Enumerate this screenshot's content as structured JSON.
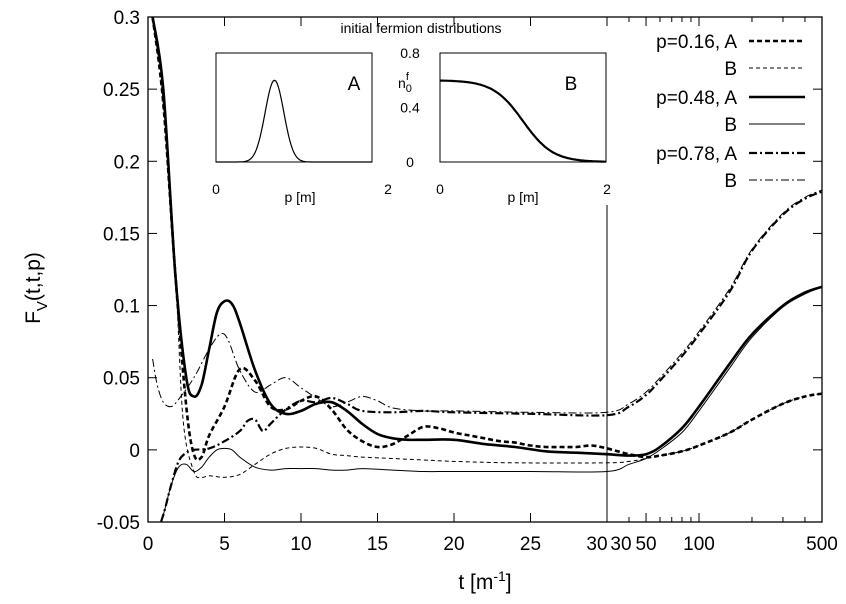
{
  "chart_data": {
    "type": "line",
    "xlabel": "t [m",
    "xlabel_sup": "-1",
    "xlabel_end": "]",
    "ylabel": "F",
    "ylabel_sub": "V",
    "ylabel_end": "(t,t,p)",
    "ylim": [
      -0.05,
      0.3
    ],
    "yticks": [
      "-0.05",
      "0",
      "0.05",
      "0.1",
      "0.15",
      "0.2",
      "0.25",
      "0.3"
    ],
    "ytick_values": [
      -0.05,
      0,
      0.05,
      0.1,
      0.15,
      0.2,
      0.25,
      0.3
    ],
    "x_axis_segments": [
      {
        "scale": "linear",
        "range": [
          0,
          30
        ]
      },
      {
        "scale": "log",
        "range": [
          30,
          500
        ]
      }
    ],
    "xticks": [
      "0",
      "5",
      "10",
      "15",
      "20",
      "25",
      "30",
      "30",
      "50",
      "100",
      "500"
    ],
    "grid": false,
    "legend_position": "top-right",
    "legend": [
      {
        "line1": "p=0.16, A",
        "line2": "B",
        "styleA": "A016",
        "styleB": "B016"
      },
      {
        "line1": "p=0.48, A",
        "line2": "B",
        "styleA": "A048",
        "styleB": "B048"
      },
      {
        "line1": "p=0.78, A",
        "line2": "B",
        "styleA": "A078",
        "styleB": "B078"
      }
    ],
    "series": [
      {
        "style": "A016",
        "p": 0.16,
        "distribution": "A",
        "points": [
          [
            0.3,
            0.3
          ],
          [
            1,
            0.24
          ],
          [
            1.8,
            0.12
          ],
          [
            2.5,
            0.03
          ],
          [
            3,
            -0.003
          ],
          [
            3.5,
            -0.005
          ],
          [
            4,
            0.01
          ],
          [
            5,
            0.03
          ],
          [
            6,
            0.056
          ],
          [
            7,
            0.048
          ],
          [
            8,
            0.03
          ],
          [
            9,
            0.028
          ],
          [
            10,
            0.034
          ],
          [
            11,
            0.037
          ],
          [
            12,
            0.028
          ],
          [
            13,
            0.014
          ],
          [
            14,
            0.006
          ],
          [
            15,
            0.002
          ],
          [
            16,
            0.004
          ],
          [
            17,
            0.01
          ],
          [
            18,
            0.016
          ],
          [
            19,
            0.015
          ],
          [
            20,
            0.012
          ],
          [
            21,
            0.01
          ],
          [
            22,
            0.008
          ],
          [
            23,
            0.006
          ],
          [
            24,
            0.005
          ],
          [
            25,
            0.003
          ],
          [
            26,
            0.002
          ],
          [
            27,
            0.002
          ],
          [
            28,
            0.002
          ],
          [
            29,
            0.003
          ],
          [
            30,
            0.001
          ],
          [
            40,
            -0.003
          ],
          [
            50,
            -0.005
          ],
          [
            60,
            -0.004
          ],
          [
            80,
            -0.001
          ],
          [
            100,
            0.003
          ],
          [
            150,
            0.012
          ],
          [
            200,
            0.021
          ],
          [
            300,
            0.032
          ],
          [
            400,
            0.037
          ],
          [
            500,
            0.039
          ]
        ]
      },
      {
        "style": "B016",
        "p": 0.16,
        "distribution": "B",
        "points": [
          [
            0.3,
            0.3
          ],
          [
            1,
            0.24
          ],
          [
            1.8,
            0.12
          ],
          [
            2.3,
            0.02
          ],
          [
            3,
            -0.015
          ],
          [
            3.5,
            -0.019
          ],
          [
            4,
            -0.018
          ],
          [
            5,
            -0.019
          ],
          [
            6,
            -0.017
          ],
          [
            7,
            -0.01
          ],
          [
            8,
            -0.003
          ],
          [
            9,
            0.001
          ],
          [
            10,
            0.002
          ],
          [
            11,
            0.001
          ],
          [
            12,
            -0.003
          ],
          [
            13,
            -0.004
          ],
          [
            14,
            -0.005
          ],
          [
            16,
            -0.006
          ],
          [
            18,
            -0.007
          ],
          [
            20,
            -0.008
          ],
          [
            24,
            -0.009
          ],
          [
            30,
            -0.009
          ],
          [
            40,
            -0.008
          ],
          [
            50,
            -0.006
          ],
          [
            60,
            -0.004
          ],
          [
            80,
            -0.001
          ],
          [
            100,
            0.003
          ],
          [
            150,
            0.012
          ],
          [
            200,
            0.021
          ],
          [
            300,
            0.032
          ],
          [
            400,
            0.037
          ],
          [
            500,
            0.039
          ]
        ]
      },
      {
        "style": "A048",
        "p": 0.48,
        "distribution": "A",
        "points": [
          [
            0.3,
            0.3
          ],
          [
            1,
            0.25
          ],
          [
            1.8,
            0.12
          ],
          [
            2.5,
            0.05
          ],
          [
            3,
            0.037
          ],
          [
            3.5,
            0.045
          ],
          [
            4,
            0.07
          ],
          [
            4.5,
            0.095
          ],
          [
            5,
            0.103
          ],
          [
            5.5,
            0.101
          ],
          [
            6,
            0.088
          ],
          [
            7,
            0.055
          ],
          [
            8,
            0.032
          ],
          [
            9,
            0.025
          ],
          [
            10,
            0.027
          ],
          [
            11,
            0.032
          ],
          [
            12,
            0.033
          ],
          [
            13,
            0.027
          ],
          [
            14,
            0.018
          ],
          [
            15,
            0.011
          ],
          [
            16,
            0.008
          ],
          [
            17,
            0.007
          ],
          [
            18,
            0.007
          ],
          [
            20,
            0.007
          ],
          [
            22,
            0.004
          ],
          [
            24,
            0.002
          ],
          [
            26,
            -0.001
          ],
          [
            28,
            -0.002
          ],
          [
            30,
            -0.003
          ],
          [
            40,
            -0.004
          ],
          [
            50,
            -0.003
          ],
          [
            60,
            0.002
          ],
          [
            80,
            0.015
          ],
          [
            100,
            0.03
          ],
          [
            150,
            0.06
          ],
          [
            200,
            0.08
          ],
          [
            300,
            0.1
          ],
          [
            400,
            0.109
          ],
          [
            500,
            0.113
          ]
        ]
      },
      {
        "style": "B048",
        "p": 0.48,
        "distribution": "B",
        "points": [
          [
            0.5,
            -0.06
          ],
          [
            1,
            -0.045
          ],
          [
            1.5,
            -0.025
          ],
          [
            2,
            -0.012
          ],
          [
            2.5,
            -0.01
          ],
          [
            3,
            -0.015
          ],
          [
            3.5,
            -0.012
          ],
          [
            4,
            -0.005
          ],
          [
            4.5,
            0
          ],
          [
            5,
            0.001
          ],
          [
            5.5,
            0
          ],
          [
            6,
            -0.005
          ],
          [
            7,
            -0.012
          ],
          [
            8,
            -0.014
          ],
          [
            9,
            -0.013
          ],
          [
            10,
            -0.013
          ],
          [
            11,
            -0.013
          ],
          [
            12,
            -0.014
          ],
          [
            13,
            -0.014
          ],
          [
            14,
            -0.013
          ],
          [
            16,
            -0.014
          ],
          [
            18,
            -0.015
          ],
          [
            20,
            -0.015
          ],
          [
            25,
            -0.015
          ],
          [
            30,
            -0.015
          ],
          [
            40,
            -0.01
          ],
          [
            50,
            -0.006
          ],
          [
            60,
            0
          ],
          [
            80,
            0.012
          ],
          [
            100,
            0.027
          ],
          [
            150,
            0.057
          ],
          [
            200,
            0.078
          ],
          [
            300,
            0.099
          ],
          [
            400,
            0.108
          ],
          [
            500,
            0.113
          ]
        ]
      },
      {
        "style": "A078",
        "p": 0.78,
        "distribution": "A",
        "points": [
          [
            0.5,
            -0.06
          ],
          [
            1,
            -0.045
          ],
          [
            1.5,
            -0.025
          ],
          [
            2,
            -0.008
          ],
          [
            2.5,
            -0.002
          ],
          [
            3,
            0
          ],
          [
            4,
            0.001
          ],
          [
            5,
            0.006
          ],
          [
            6,
            0.013
          ],
          [
            6.5,
            0.02
          ],
          [
            7,
            0.021
          ],
          [
            7.5,
            0.013
          ],
          [
            8,
            0.018
          ],
          [
            9,
            0.028
          ],
          [
            10,
            0.034
          ],
          [
            11,
            0.033
          ],
          [
            12,
            0.036
          ],
          [
            13,
            0.032
          ],
          [
            14,
            0.027
          ],
          [
            16,
            0.026
          ],
          [
            18,
            0.027
          ],
          [
            20,
            0.026
          ],
          [
            25,
            0.025
          ],
          [
            30,
            0.024
          ],
          [
            40,
            0.03
          ],
          [
            50,
            0.038
          ],
          [
            60,
            0.048
          ],
          [
            80,
            0.065
          ],
          [
            100,
            0.08
          ],
          [
            150,
            0.11
          ],
          [
            200,
            0.138
          ],
          [
            300,
            0.163
          ],
          [
            400,
            0.174
          ],
          [
            500,
            0.179
          ]
        ]
      },
      {
        "style": "B078",
        "p": 0.78,
        "distribution": "B",
        "points": [
          [
            0.3,
            0.063
          ],
          [
            0.6,
            0.045
          ],
          [
            1,
            0.033
          ],
          [
            1.5,
            0.03
          ],
          [
            2,
            0.035
          ],
          [
            3,
            0.05
          ],
          [
            4,
            0.07
          ],
          [
            4.7,
            0.08
          ],
          [
            5.2,
            0.077
          ],
          [
            6,
            0.055
          ],
          [
            7,
            0.04
          ],
          [
            8,
            0.045
          ],
          [
            9,
            0.05
          ],
          [
            10,
            0.043
          ],
          [
            11,
            0.036
          ],
          [
            12,
            0.03
          ],
          [
            13,
            0.033
          ],
          [
            14,
            0.037
          ],
          [
            15,
            0.034
          ],
          [
            16,
            0.029
          ],
          [
            18,
            0.027
          ],
          [
            20,
            0.027
          ],
          [
            25,
            0.026
          ],
          [
            30,
            0.026
          ],
          [
            40,
            0.032
          ],
          [
            50,
            0.04
          ],
          [
            60,
            0.05
          ],
          [
            80,
            0.067
          ],
          [
            100,
            0.082
          ],
          [
            150,
            0.112
          ],
          [
            200,
            0.139
          ],
          [
            300,
            0.164
          ],
          [
            400,
            0.175
          ],
          [
            500,
            0.18
          ]
        ]
      }
    ],
    "inset": {
      "title": "initial fermion distributions",
      "xlabel": "p [m]",
      "ylabel": "n",
      "ylabel_sub": "0",
      "ylabel_sup": "f",
      "yticks": [
        "0",
        "0.4",
        "0.8"
      ],
      "ytick_values": [
        0,
        0.4,
        0.8
      ],
      "xticks": [
        "0",
        "2"
      ],
      "panels": [
        {
          "label": "A",
          "xlim": [
            0,
            2
          ],
          "ylim": [
            0,
            0.8
          ],
          "shape": "gaussian",
          "peak_x": 0.75,
          "peak_y": 0.6,
          "width": 0.12,
          "xticks": [
            "0",
            "2"
          ],
          "xlabel": "p [m]"
        },
        {
          "label": "B",
          "xlim": [
            0,
            2
          ],
          "ylim": [
            0,
            0.8
          ],
          "shape": "fermi",
          "height": 0.6,
          "mu": 1.0,
          "width": 0.18,
          "xticks": [
            "0",
            "2"
          ],
          "xlabel": "p [m]"
        }
      ]
    }
  }
}
